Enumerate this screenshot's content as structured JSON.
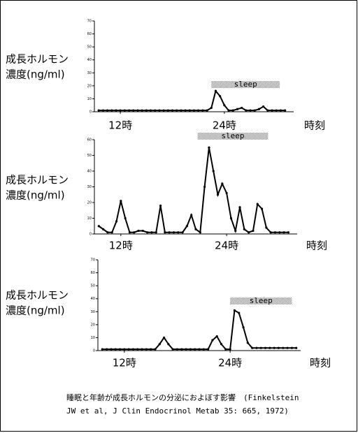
{
  "chart_data": [
    {
      "type": "line",
      "ylabel": [
        "成長ホルモン",
        "濃度(ng/ml)"
      ],
      "xlabel": "時刻",
      "annotation": {
        "text": "sleep",
        "x": [
          22.5,
          30.4
        ]
      },
      "xlim": [
        9,
        32
      ],
      "xticks": [
        {
          "value": 12,
          "label": "12時"
        },
        {
          "value": 24,
          "label": "24時"
        }
      ],
      "ylim": [
        0,
        70
      ],
      "yticks": [
        0,
        10,
        20,
        30,
        40,
        50,
        60,
        70
      ],
      "color": "#000000",
      "x": [
        9.5,
        10,
        10.5,
        11,
        11.5,
        12,
        12.5,
        13,
        13.5,
        14,
        14.5,
        15,
        15.5,
        16,
        16.5,
        17,
        17.5,
        18,
        18.5,
        19,
        19.5,
        20,
        20.5,
        21,
        21.5,
        22,
        22.5,
        23,
        23.5,
        24,
        24.5,
        25,
        25.5,
        26,
        26.5,
        27,
        27.5,
        28,
        28.5,
        29,
        29.5,
        30,
        30.5,
        31
      ],
      "values": [
        1,
        1,
        1,
        1,
        1,
        1,
        1,
        1,
        1,
        1,
        1,
        1,
        1,
        1,
        1,
        1,
        1,
        1,
        1,
        1,
        1,
        1,
        1,
        1,
        1,
        1,
        3,
        16,
        12,
        5,
        1,
        1,
        2,
        3,
        1,
        1,
        1,
        2,
        4,
        1,
        1,
        1,
        1,
        1
      ]
    },
    {
      "type": "line",
      "ylabel": [
        "成長ホルモン",
        "濃度(ng/ml)"
      ],
      "xlabel": "時刻",
      "annotation": {
        "text": "sleep",
        "x": [
          20.7,
          28.7
        ]
      },
      "xlim": [
        9,
        32
      ],
      "xticks": [
        {
          "value": 12,
          "label": "12時"
        },
        {
          "value": 24,
          "label": "24時"
        }
      ],
      "ylim": [
        0,
        60
      ],
      "yticks": [
        0,
        10,
        20,
        30,
        40,
        50,
        60
      ],
      "color": "#000000",
      "x": [
        9.5,
        10,
        10.5,
        11,
        11.5,
        12,
        12.5,
        13,
        13.5,
        14,
        14.5,
        15,
        15.5,
        16,
        16.5,
        17,
        17.5,
        18,
        18.5,
        19,
        19.5,
        20,
        20.5,
        21,
        21.5,
        22,
        22.5,
        23,
        23.5,
        24,
        24.5,
        25,
        25.5,
        26,
        26.5,
        27,
        27.5,
        28,
        28.5,
        29,
        29.5,
        30,
        30.5,
        31
      ],
      "values": [
        5,
        3,
        1,
        1,
        8,
        21,
        10,
        1,
        1,
        2,
        2,
        1,
        1,
        1,
        18,
        1,
        1,
        1,
        1,
        1,
        5,
        12,
        3,
        1,
        30,
        55,
        40,
        25,
        32,
        26,
        10,
        2,
        17,
        3,
        1,
        2,
        19,
        16,
        4,
        1,
        1,
        1,
        1,
        1
      ]
    },
    {
      "type": "line",
      "ylabel": [
        "成長ホルモン",
        "濃度(ng/ml)"
      ],
      "xlabel": "時刻",
      "annotation": {
        "text": "sleep",
        "x": [
          24,
          31
        ]
      },
      "xlim": [
        9,
        32
      ],
      "xticks": [
        {
          "value": 12,
          "label": "12時"
        },
        {
          "value": 24,
          "label": "24時"
        }
      ],
      "ylim": [
        0,
        70
      ],
      "yticks": [
        0,
        10,
        20,
        30,
        40,
        50,
        60,
        70
      ],
      "color": "#000000",
      "x": [
        9.5,
        10,
        10.5,
        11,
        11.5,
        12,
        12.5,
        13,
        13.5,
        14,
        14.5,
        15,
        15.5,
        16,
        16.5,
        17,
        17.5,
        18,
        18.5,
        19,
        19.5,
        20,
        20.5,
        21,
        21.5,
        22,
        22.5,
        23,
        23.5,
        24,
        24.5,
        25,
        25.5,
        26,
        26.5,
        27,
        27.5,
        28,
        28.5,
        29,
        29.5,
        30,
        30.5,
        31,
        31.5
      ],
      "values": [
        1,
        1,
        1,
        1,
        1,
        1,
        1,
        1,
        1,
        1,
        1,
        1,
        1,
        5,
        10,
        5,
        1,
        1,
        1,
        1,
        1,
        1,
        1,
        1,
        1,
        8,
        11,
        5,
        1,
        1,
        31,
        29,
        18,
        6,
        2,
        2,
        2,
        2,
        2,
        2,
        2,
        2,
        2,
        2,
        2
      ]
    }
  ],
  "caption": [
    "睡眠と年齢が成長ホルモンの分泌におよぼす影響　(Finkelstein",
    "JW et al, J Clin Endocrinol Metab 35: 665, 1972)"
  ]
}
